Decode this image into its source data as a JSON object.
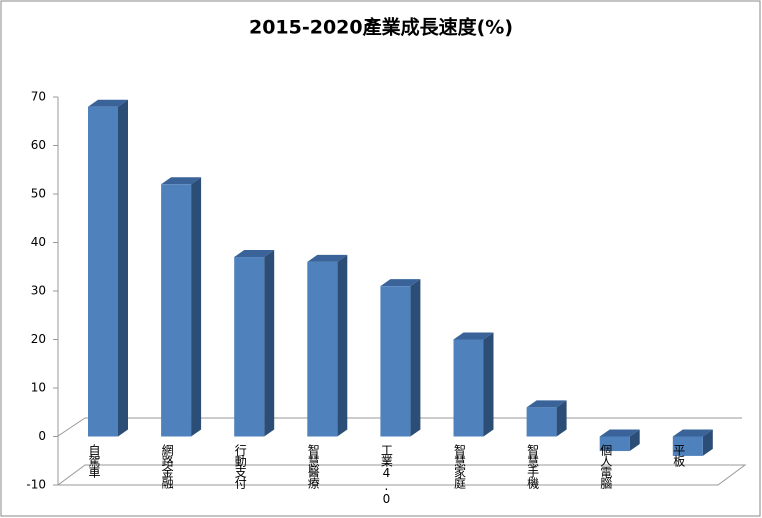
{
  "chart_data": {
    "type": "bar3d",
    "title": "2015-2020產業成長速度(%)",
    "categories": [
      "自駕車",
      "網路金融",
      "行動支付",
      "智慧醫療",
      "工業4.0",
      "智慧家庭",
      "智慧手機",
      "個人電腦",
      "平板"
    ],
    "values": [
      68,
      52,
      37,
      36,
      31,
      20,
      6,
      -3,
      -4
    ],
    "color": "#4f81bd",
    "ylim": [
      -10,
      70
    ],
    "yticks": [
      -10,
      0,
      10,
      20,
      30,
      40,
      50,
      60,
      70
    ],
    "grid": false
  }
}
